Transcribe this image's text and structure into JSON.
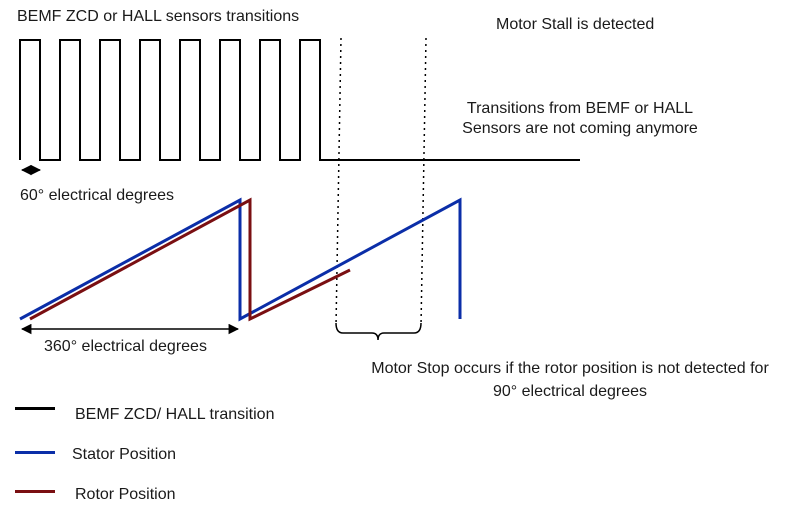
{
  "labels": {
    "bemf_title": "BEMF ZCD or HALL sensors transitions",
    "stall_detected": "Motor Stall is detected",
    "transitions_note_line1": "Transitions from BEMF or HALL",
    "transitions_note_line2": "Sensors are not coming anymore",
    "sixty_degrees": "60° electrical degrees",
    "three_sixty_degrees": "360° electrical degrees",
    "motor_stop_line1": "Motor Stop occurs if the rotor position is not detected for",
    "motor_stop_line2": "90° electrical degrees"
  },
  "legend": [
    {
      "label": "BEMF ZCD/ HALL transition",
      "color": "#000000"
    },
    {
      "label": "Stator Position",
      "color": "#0b2ea8"
    },
    {
      "label": "Rotor Position",
      "color": "#7a0f12"
    }
  ],
  "colors": {
    "bemf_signal": "#000000",
    "stator": "#0b2ea8",
    "rotor": "#7a0f12"
  },
  "bemf_signal": {
    "transitions_before_stall": 15,
    "state_after_stall": "low"
  }
}
